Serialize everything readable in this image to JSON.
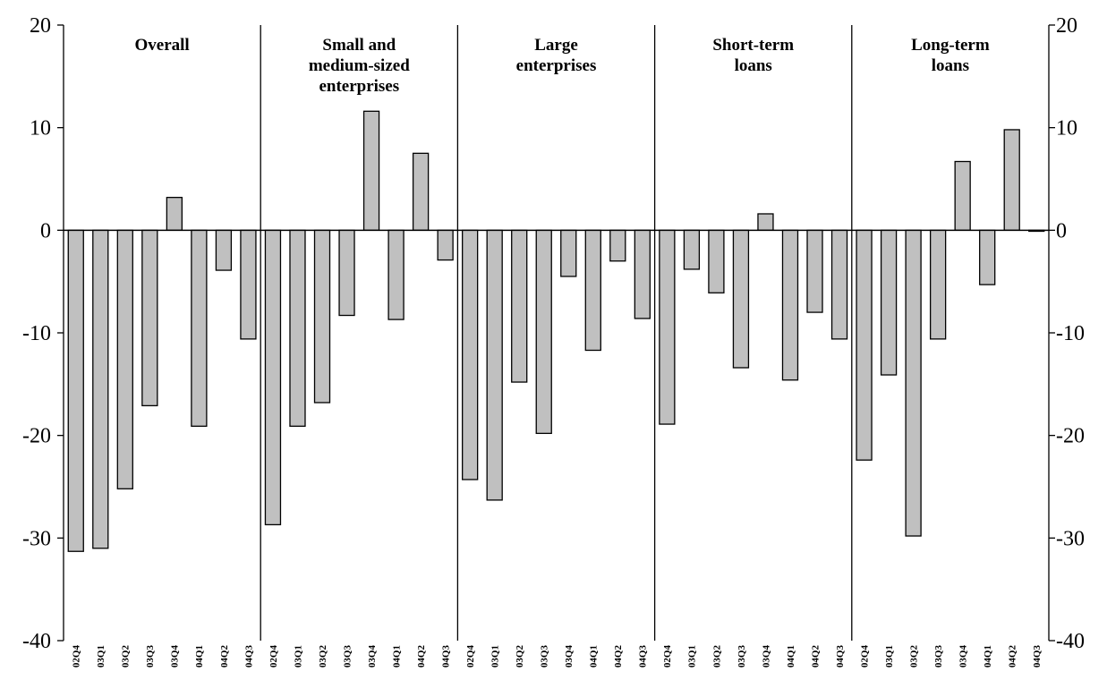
{
  "chart_data": {
    "type": "bar",
    "title": "",
    "xlabel": "",
    "ylabel": "",
    "ylim": [
      -40,
      20
    ],
    "yticks": [
      20,
      10,
      0,
      -10,
      -20,
      -30,
      -40
    ],
    "y_axis_both_sides": true,
    "grid": false,
    "categories": [
      "02Q4",
      "03Q1",
      "03Q2",
      "03Q3",
      "03Q4",
      "04Q1",
      "04Q2",
      "04Q3"
    ],
    "panels": [
      {
        "title": [
          "Overall"
        ],
        "values": [
          -31.3,
          -31.0,
          -25.2,
          -17.1,
          3.2,
          -19.1,
          -3.9,
          -10.6
        ]
      },
      {
        "title": [
          "Small and",
          "medium-sized",
          "enterprises"
        ],
        "values": [
          -28.7,
          -19.1,
          -16.8,
          -8.3,
          11.6,
          -8.7,
          7.5,
          -2.9
        ]
      },
      {
        "title": [
          "Large",
          "enterprises"
        ],
        "values": [
          -24.3,
          -26.3,
          -14.8,
          -19.8,
          -4.5,
          -11.7,
          -3.0,
          -8.6
        ]
      },
      {
        "title": [
          "Short-term",
          "loans"
        ],
        "values": [
          -18.9,
          -3.8,
          -6.1,
          -13.4,
          1.6,
          -14.6,
          -8.0,
          -10.6
        ]
      },
      {
        "title": [
          "Long-term",
          "loans"
        ],
        "values": [
          -22.4,
          -14.1,
          -29.8,
          -10.6,
          6.7,
          -5.3,
          9.8,
          -0.1
        ]
      }
    ],
    "colors": {
      "bar_fill": "#c0c0c0",
      "bar_stroke": "#000000"
    }
  }
}
